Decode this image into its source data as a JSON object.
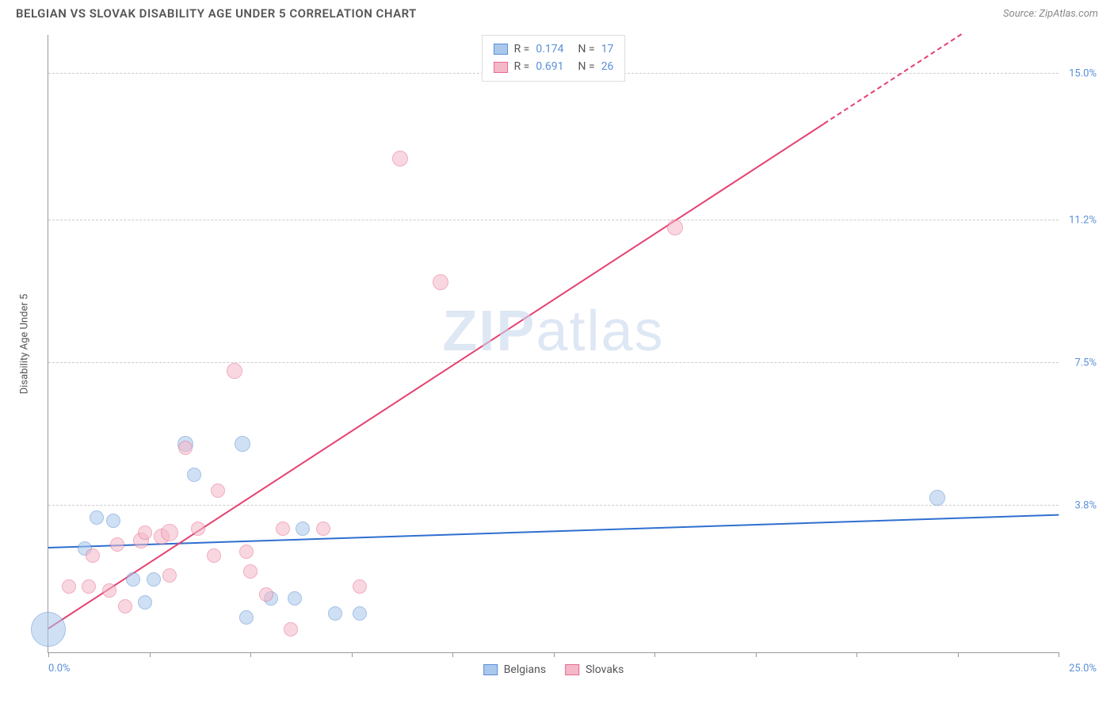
{
  "header": {
    "title": "BELGIAN VS SLOVAK DISABILITY AGE UNDER 5 CORRELATION CHART",
    "source": "Source: ZipAtlas.com"
  },
  "watermark": {
    "part1": "ZIP",
    "part2": "atlas"
  },
  "chart": {
    "type": "scatter",
    "background_color": "#ffffff",
    "grid_color": "#cccccc",
    "axis_color": "#999999",
    "tick_label_color": "#5b8fd6",
    "axis_title_color": "#555555",
    "xlim": [
      0,
      25
    ],
    "ylim": [
      0,
      16
    ],
    "x_ticks": [
      0,
      2.5,
      5,
      7.5,
      10,
      12.5,
      15,
      17.5,
      20,
      22.5,
      25
    ],
    "y_gridlines": [
      {
        "y": 3.8,
        "label": "3.8%"
      },
      {
        "y": 7.5,
        "label": "7.5%"
      },
      {
        "y": 11.2,
        "label": "11.2%"
      },
      {
        "y": 15.0,
        "label": "15.0%"
      }
    ],
    "x_axis_label_left": "0.0%",
    "x_axis_label_right": "25.0%",
    "y_axis_title": "Disability Age Under 5",
    "marker_stroke_width": 1,
    "trend_line_width": 2,
    "series": [
      {
        "name": "Belgians",
        "fill_color": "#a9c8ec",
        "stroke_color": "#5b8fd6",
        "fill_opacity": 0.55,
        "trend_color": "#2f6fd0",
        "R": "0.174",
        "N": "17",
        "trend": {
          "x1": 0,
          "y1": 2.7,
          "x2": 25,
          "y2": 3.55,
          "dashed_from_x": null
        },
        "points": [
          {
            "x": 0.0,
            "y": 0.6,
            "r": 22
          },
          {
            "x": 0.9,
            "y": 2.7,
            "r": 9
          },
          {
            "x": 1.2,
            "y": 3.5,
            "r": 9
          },
          {
            "x": 1.6,
            "y": 3.4,
            "r": 9
          },
          {
            "x": 2.1,
            "y": 1.9,
            "r": 9
          },
          {
            "x": 2.4,
            "y": 1.3,
            "r": 9
          },
          {
            "x": 2.6,
            "y": 1.9,
            "r": 9
          },
          {
            "x": 3.4,
            "y": 5.4,
            "r": 10
          },
          {
            "x": 3.6,
            "y": 4.6,
            "r": 9
          },
          {
            "x": 4.8,
            "y": 5.4,
            "r": 10
          },
          {
            "x": 4.9,
            "y": 0.9,
            "r": 9
          },
          {
            "x": 5.5,
            "y": 1.4,
            "r": 9
          },
          {
            "x": 6.1,
            "y": 1.4,
            "r": 9
          },
          {
            "x": 6.3,
            "y": 3.2,
            "r": 9
          },
          {
            "x": 7.1,
            "y": 1.0,
            "r": 9
          },
          {
            "x": 7.7,
            "y": 1.0,
            "r": 9
          },
          {
            "x": 22.0,
            "y": 4.0,
            "r": 10
          }
        ]
      },
      {
        "name": "Slovaks",
        "fill_color": "#f4b8c8",
        "stroke_color": "#e86a8f",
        "fill_opacity": 0.55,
        "trend_color": "#e5416f",
        "R": "0.691",
        "N": "26",
        "trend": {
          "x1": 0,
          "y1": 0.6,
          "x2": 22.6,
          "y2": 16.0,
          "dashed_from_x": 19.2
        },
        "points": [
          {
            "x": 0.5,
            "y": 1.7,
            "r": 9
          },
          {
            "x": 1.0,
            "y": 1.7,
            "r": 9
          },
          {
            "x": 1.1,
            "y": 2.5,
            "r": 9
          },
          {
            "x": 1.5,
            "y": 1.6,
            "r": 9
          },
          {
            "x": 1.7,
            "y": 2.8,
            "r": 9
          },
          {
            "x": 1.9,
            "y": 1.2,
            "r": 9
          },
          {
            "x": 2.3,
            "y": 2.9,
            "r": 10
          },
          {
            "x": 2.4,
            "y": 3.1,
            "r": 9
          },
          {
            "x": 2.8,
            "y": 3.0,
            "r": 10
          },
          {
            "x": 3.0,
            "y": 3.1,
            "r": 11
          },
          {
            "x": 3.0,
            "y": 2.0,
            "r": 9
          },
          {
            "x": 3.4,
            "y": 5.3,
            "r": 9
          },
          {
            "x": 3.7,
            "y": 3.2,
            "r": 9
          },
          {
            "x": 4.1,
            "y": 2.5,
            "r": 9
          },
          {
            "x": 4.2,
            "y": 4.2,
            "r": 9
          },
          {
            "x": 4.6,
            "y": 7.3,
            "r": 10
          },
          {
            "x": 4.9,
            "y": 2.6,
            "r": 9
          },
          {
            "x": 5.0,
            "y": 2.1,
            "r": 9
          },
          {
            "x": 5.4,
            "y": 1.5,
            "r": 9
          },
          {
            "x": 5.8,
            "y": 3.2,
            "r": 9
          },
          {
            "x": 6.0,
            "y": 0.6,
            "r": 9
          },
          {
            "x": 6.8,
            "y": 3.2,
            "r": 9
          },
          {
            "x": 7.7,
            "y": 1.7,
            "r": 9
          },
          {
            "x": 8.7,
            "y": 12.8,
            "r": 10
          },
          {
            "x": 9.7,
            "y": 9.6,
            "r": 10
          },
          {
            "x": 15.5,
            "y": 11.0,
            "r": 10
          }
        ]
      }
    ],
    "legend_bottom": [
      {
        "label": "Belgians",
        "fill": "#a9c8ec",
        "stroke": "#5b8fd6"
      },
      {
        "label": "Slovaks",
        "fill": "#f4b8c8",
        "stroke": "#e86a8f"
      }
    ]
  }
}
